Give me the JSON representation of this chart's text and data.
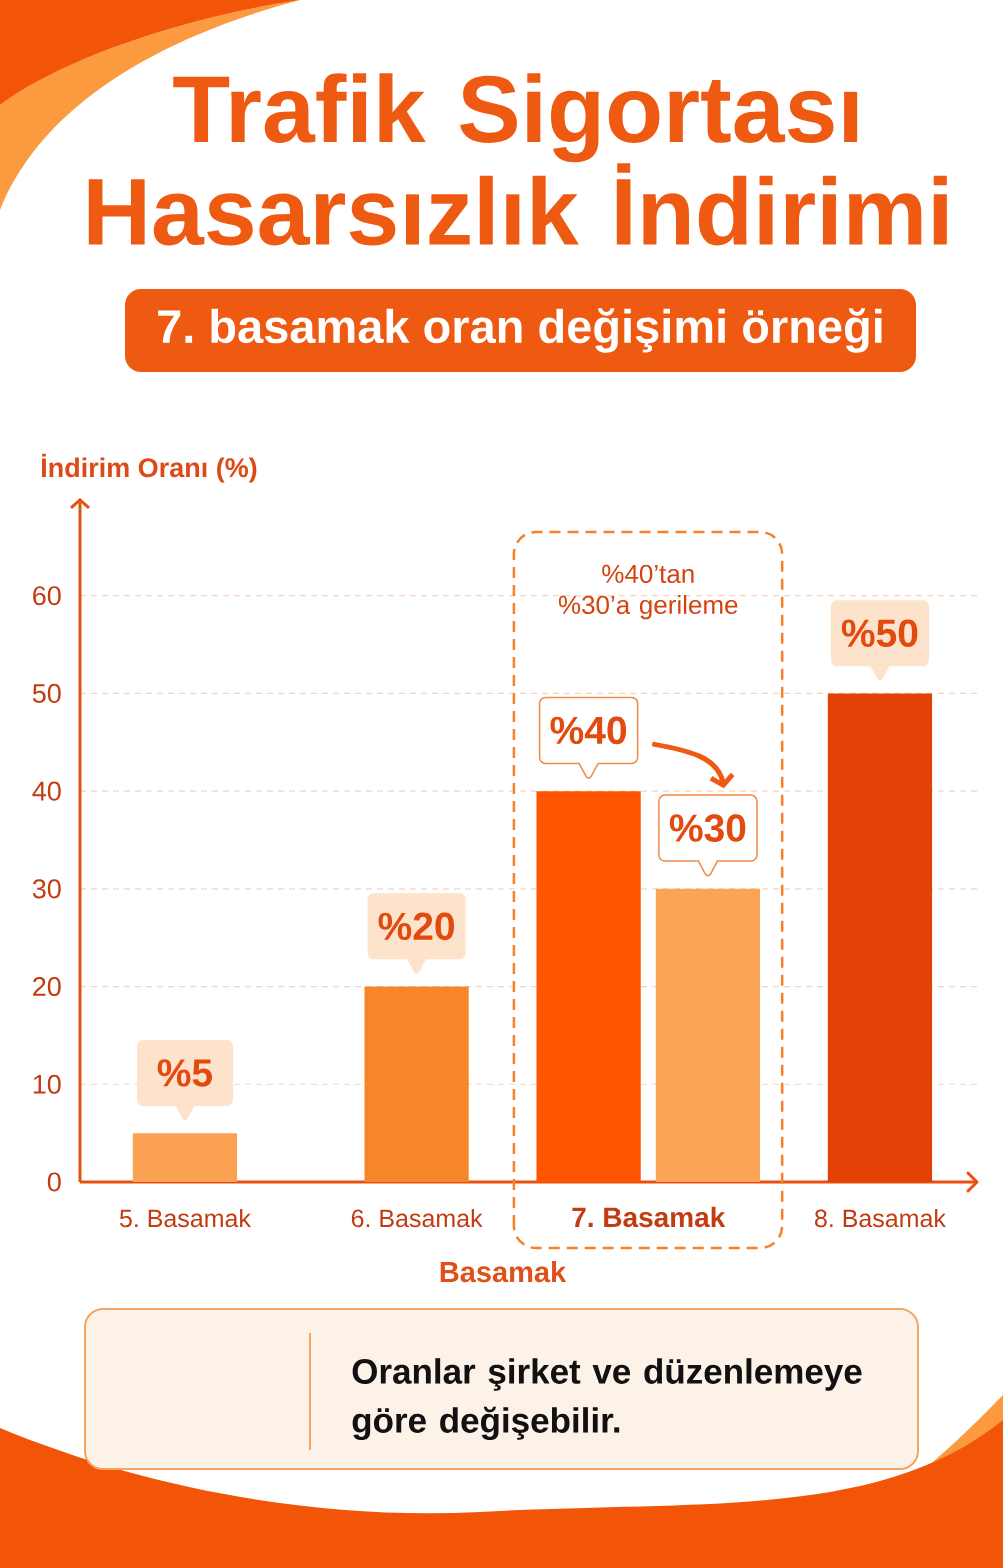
{
  "chart_data": {
    "type": "bar",
    "title": "Trafik Sigortası Hasarsızlık İndirimi",
    "subtitle": "7. basamak oran değişimi örneği",
    "xlabel": "Basamak",
    "ylabel": "İndirim Oranı (%)",
    "categories": [
      "5. Basamak",
      "6. Basamak",
      "7. Basamak",
      "8. Basamak"
    ],
    "series": [
      {
        "colors": [
          "#fba152",
          "#f7862a",
          "#ff5500",
          "#e24206"
        ],
        "values": [
          5,
          20,
          40,
          50
        ],
        "value_labels": [
          "%5",
          "%20",
          "%40",
          "%50"
        ]
      },
      {
        "color": "#fca455",
        "values": [
          null,
          null,
          30,
          null
        ],
        "value_labels": [
          null,
          null,
          "%30",
          null
        ]
      }
    ],
    "ylim": [
      0,
      70
    ],
    "yticks": [
      0,
      10,
      20,
      30,
      40,
      50,
      60
    ],
    "grid": "y",
    "annotations": [
      "%40’tan\n%30’a gerileme",
      "Oranlar şirket ve düzenlemeye göre değişebilir."
    ]
  }
}
